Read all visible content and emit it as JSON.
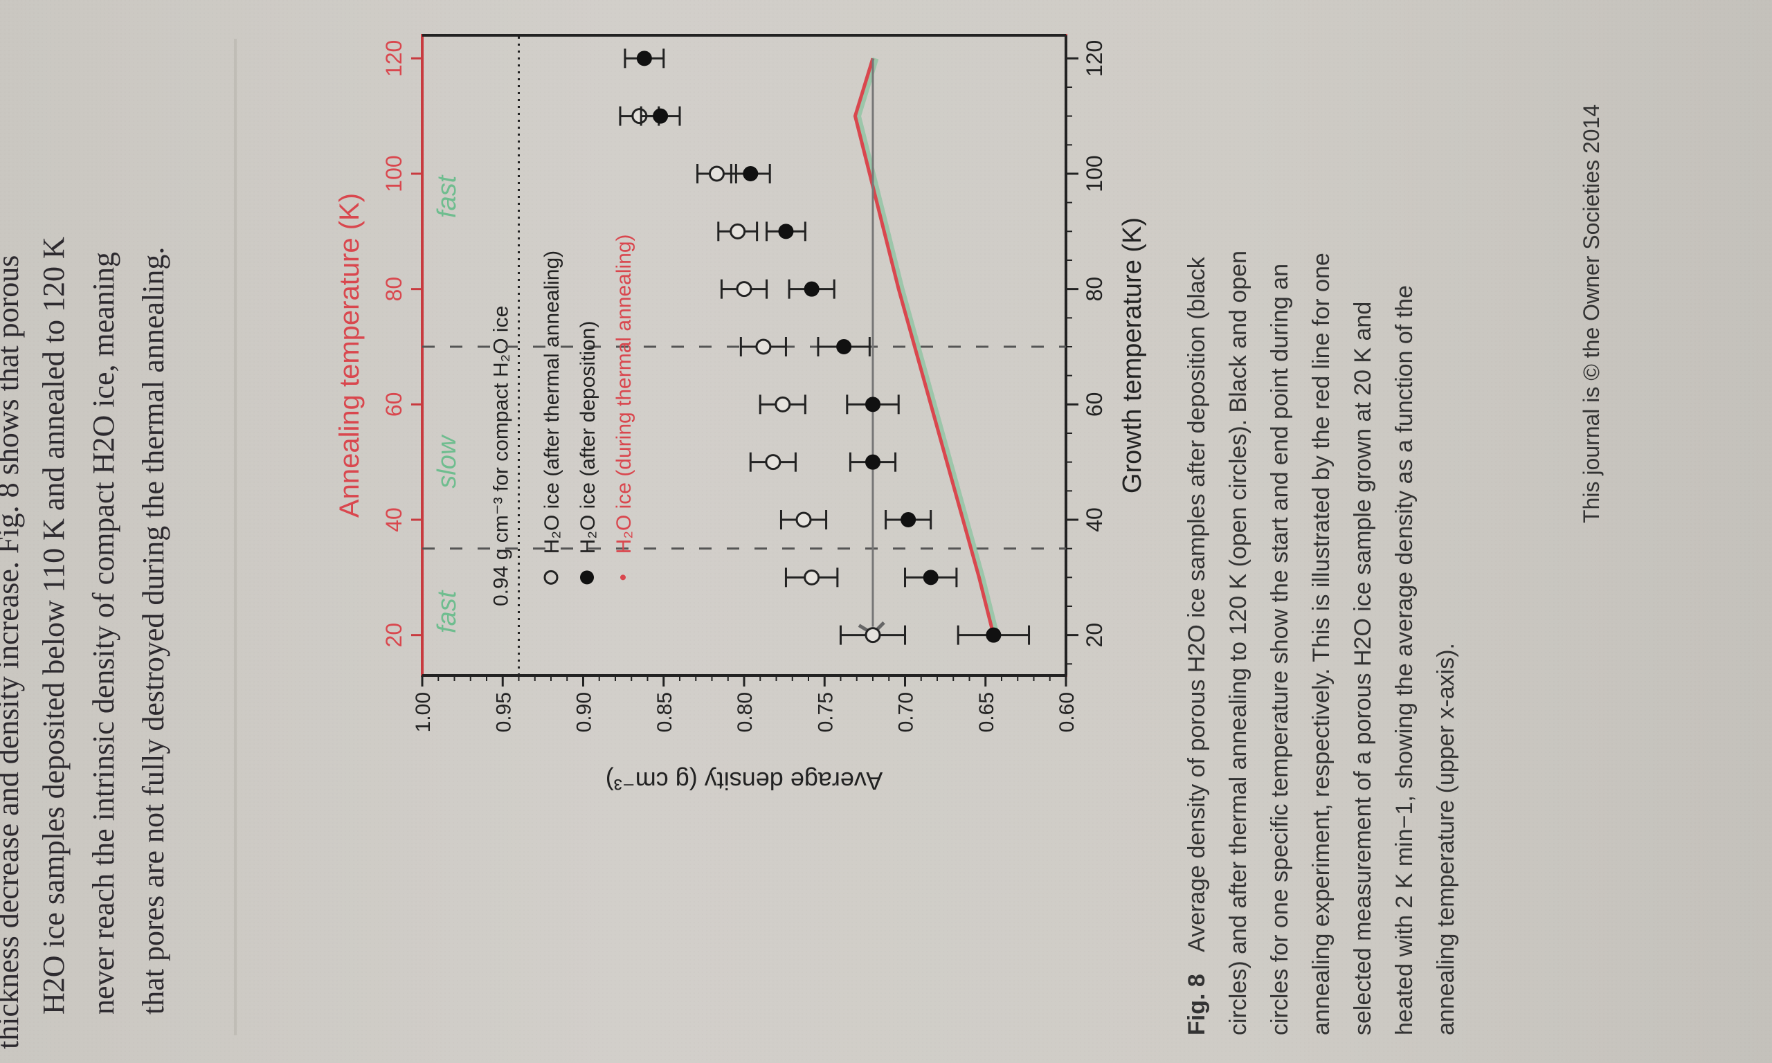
{
  "page": {
    "body_lines": [
      "thickness decrease and density increase. Fig. 8 shows that porous",
      "H2O ice samples deposited below 110 K and annealed to 120 K",
      "never reach the intrinsic density of compact H2O ice, meaning",
      "that pores are not fully destroyed during the thermal annealing."
    ],
    "caption": {
      "label": "Fig. 8",
      "lines": [
        "Average density of porous H2O ice samples after deposition (black",
        "circles) and after thermal annealing to 120 K (open circles). Black and open",
        "circles for one specific temperature show the start and end point during an",
        "annealing experiment, respectively. This is illustrated by the red line for one",
        "selected measurement of a porous H2O ice sample grown at 20 K and",
        "heated with 2 K min−1, showing the average density as a function of the",
        "annealing temperature (upper x-axis)."
      ]
    },
    "footer": "This journal is © the Owner Societies 2014"
  },
  "chart_data": {
    "type": "scatter",
    "title": "",
    "xlabel": "Growth temperature (K)",
    "x2label": "Annealing temperature (K)",
    "ylabel": "Average density (g cm⁻³)",
    "xlim": [
      13,
      124
    ],
    "ylim": [
      0.6,
      1.0
    ],
    "x_ticks": [
      "20",
      "40",
      "60",
      "80",
      "100",
      "120"
    ],
    "x2_ticks": [
      "20",
      "40",
      "60",
      "80",
      "100",
      "120"
    ],
    "y_ticks": [
      "0.60",
      "0.65",
      "0.70",
      "0.75",
      "0.80",
      "0.85",
      "0.90",
      "0.95",
      "1.00"
    ],
    "reference_line": {
      "y": 0.94,
      "label": "0.94 g cm⁻³ for compact H₂O ice"
    },
    "regime_boundaries": [
      35,
      70
    ],
    "regime_labels": [
      "fast",
      "slow",
      "fast"
    ],
    "legend": {
      "placement": "center-left",
      "entries": [
        {
          "marker": "open",
          "label": "H₂O ice (after thermal annealing)"
        },
        {
          "marker": "filled",
          "label": "H₂O ice (after deposition)"
        },
        {
          "marker": "red",
          "label": "H₂O ice (during thermal annealing)"
        }
      ]
    },
    "series": [
      {
        "name": "H₂O ice (after deposition)",
        "marker": "filled",
        "points": [
          {
            "x": 20,
            "y": 0.645,
            "err": 0.022
          },
          {
            "x": 30,
            "y": 0.684,
            "err": 0.016
          },
          {
            "x": 40,
            "y": 0.698,
            "err": 0.014
          },
          {
            "x": 50,
            "y": 0.72,
            "err": 0.014
          },
          {
            "x": 60,
            "y": 0.72,
            "err": 0.016
          },
          {
            "x": 70,
            "y": 0.738,
            "err": 0.016
          },
          {
            "x": 80,
            "y": 0.758,
            "err": 0.014
          },
          {
            "x": 90,
            "y": 0.774,
            "err": 0.012
          },
          {
            "x": 100,
            "y": 0.796,
            "err": 0.012
          },
          {
            "x": 110,
            "y": 0.852,
            "err": 0.012
          },
          {
            "x": 120,
            "y": 0.862,
            "err": 0.012
          }
        ]
      },
      {
        "name": "H₂O ice (after thermal annealing)",
        "marker": "open",
        "points": [
          {
            "x": 20,
            "y": 0.72,
            "err": 0.02
          },
          {
            "x": 30,
            "y": 0.758,
            "err": 0.016
          },
          {
            "x": 40,
            "y": 0.763,
            "err": 0.014
          },
          {
            "x": 50,
            "y": 0.782,
            "err": 0.014
          },
          {
            "x": 60,
            "y": 0.776,
            "err": 0.014
          },
          {
            "x": 70,
            "y": 0.788,
            "err": 0.014
          },
          {
            "x": 80,
            "y": 0.8,
            "err": 0.014
          },
          {
            "x": 90,
            "y": 0.804,
            "err": 0.012
          },
          {
            "x": 100,
            "y": 0.817,
            "err": 0.012
          },
          {
            "x": 110,
            "y": 0.865,
            "err": 0.012
          }
        ]
      },
      {
        "name": "H₂O ice (during thermal annealing)",
        "marker": "red-line",
        "x": [
          20,
          30,
          40,
          50,
          60,
          70,
          80,
          90,
          100,
          110,
          120
        ],
        "y": [
          0.645,
          0.654,
          0.664,
          0.674,
          0.684,
          0.694,
          0.704,
          0.713,
          0.722,
          0.731,
          0.72
        ]
      }
    ],
    "return_line": {
      "x": [
        120,
        20
      ],
      "y": [
        0.72,
        0.72
      ]
    }
  }
}
